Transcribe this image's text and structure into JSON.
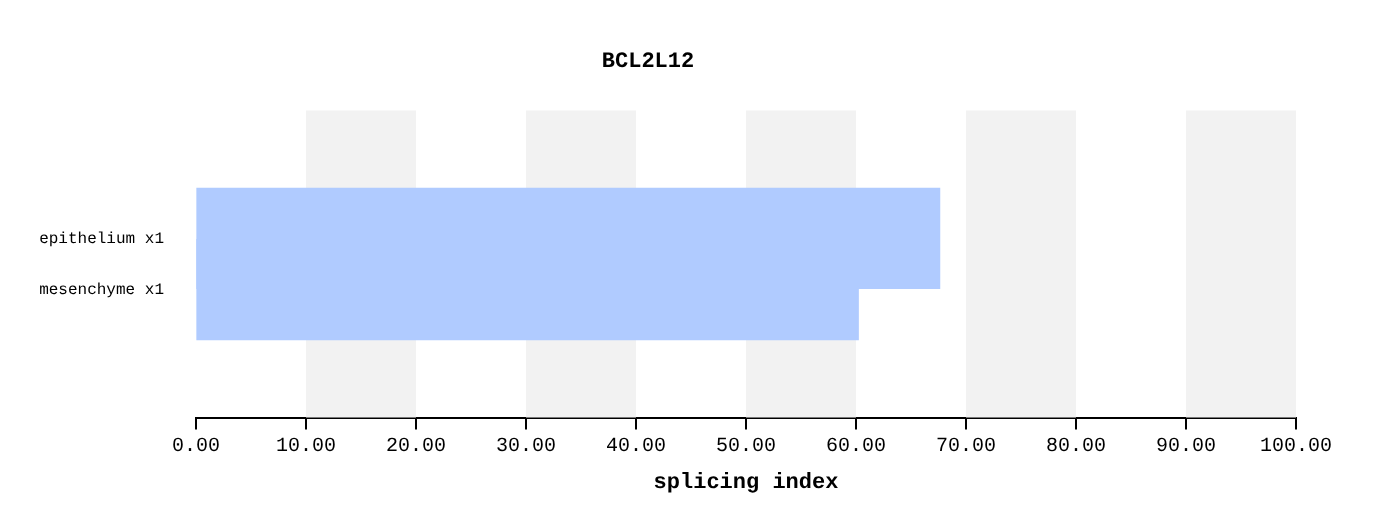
{
  "chart_data": {
    "type": "bar",
    "orientation": "horizontal",
    "title": "BCL2L12",
    "xlabel": "splicing index",
    "categories": [
      "epithelium x1",
      "mesenchyme x1"
    ],
    "values": [
      67.6,
      60.2
    ],
    "color": "#b0cbff",
    "xlim": [
      0,
      100
    ],
    "xticks": [
      {
        "value": 0,
        "label": "0.00"
      },
      {
        "value": 10,
        "label": "10.00"
      },
      {
        "value": 20,
        "label": "20.00"
      },
      {
        "value": 30,
        "label": "30.00"
      },
      {
        "value": 40,
        "label": "40.00"
      },
      {
        "value": 50,
        "label": "50.00"
      },
      {
        "value": 60,
        "label": "60.00"
      },
      {
        "value": 70,
        "label": "70.00"
      },
      {
        "value": 80,
        "label": "80.00"
      },
      {
        "value": 90,
        "label": "90.00"
      },
      {
        "value": 100,
        "label": "100.00"
      }
    ],
    "bands": [
      {
        "axis": "x",
        "from": 10,
        "to": 20,
        "color": "#f2f2f2"
      },
      {
        "axis": "x",
        "from": 30,
        "to": 40,
        "color": "#f2f2f2"
      },
      {
        "axis": "x",
        "from": 50,
        "to": 60,
        "color": "#f2f2f2"
      },
      {
        "axis": "x",
        "from": 70,
        "to": 80,
        "color": "#f2f2f2"
      },
      {
        "axis": "x",
        "from": 90,
        "to": 100,
        "color": "#f2f2f2"
      }
    ],
    "legend": false
  }
}
